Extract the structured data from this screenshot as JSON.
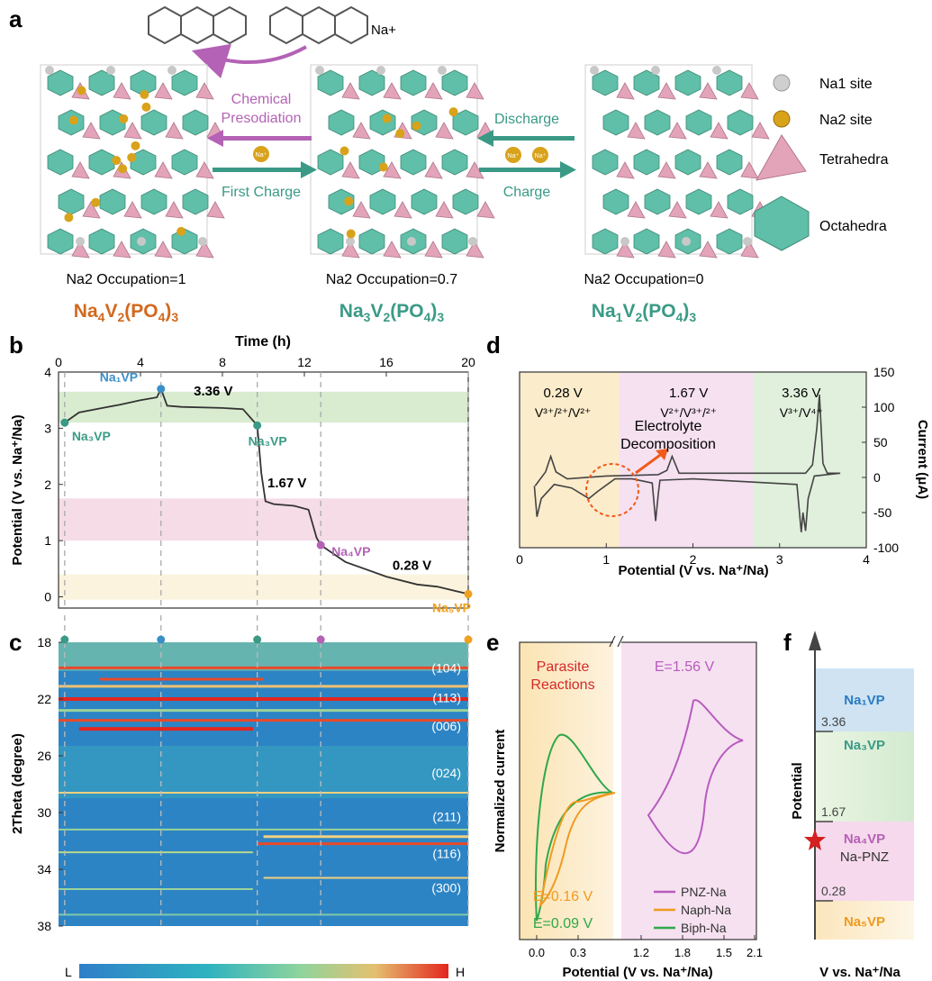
{
  "panel_letters": {
    "a": "a",
    "b": "b",
    "c": "c",
    "d": "d",
    "e": "e",
    "f": "f"
  },
  "panel_a": {
    "presodiation_label_1": "Chemical",
    "presodiation_label_2": "Presodiation",
    "first_charge_label": "First Charge",
    "discharge_label": "Discharge",
    "charge_label": "Charge",
    "na_plus": "Na+",
    "na_ion": "Na⁺",
    "occupation_left": "Na2 Occupation=1",
    "occupation_mid": "Na2 Occupation=0.7",
    "occupation_right": "Na2 Occupation=0",
    "legend": {
      "na1": "Na1 site",
      "na2": "Na2 site",
      "tetra": "Tetrahedra",
      "octa": "Octahedra"
    },
    "colors": {
      "octahedra": "#5fbfa8",
      "tetrahedra": "#e3a3b8",
      "na2": "#d9a21b",
      "na1": "#c8c8c8",
      "presodiation": "#b462b5",
      "charge": "#3a9a86"
    }
  },
  "chart_data": [
    {
      "panel": "b",
      "type": "line",
      "title": "",
      "xlabel": "Time (h)",
      "ylabel": "Potential (V vs. Na⁺/Na)",
      "xlim": [
        0,
        20
      ],
      "ylim": [
        -0.2,
        4.0
      ],
      "xticks": [
        "0",
        "4",
        "8",
        "12",
        "16",
        "20"
      ],
      "yticks": [
        "0",
        "1",
        "2",
        "3",
        "4"
      ],
      "x": [
        0.3,
        1,
        2,
        3,
        4,
        4.8,
        5.0,
        5.3,
        6,
        8,
        9,
        9.7,
        9.9,
        10.1,
        10.5,
        11.5,
        12.2,
        12.6,
        12.8,
        14,
        16,
        17.5,
        18.5,
        20
      ],
      "values": [
        3.1,
        3.28,
        3.35,
        3.42,
        3.5,
        3.55,
        3.7,
        3.4,
        3.38,
        3.36,
        3.34,
        3.05,
        2.2,
        1.7,
        1.65,
        1.62,
        1.55,
        1.05,
        0.92,
        0.62,
        0.36,
        0.22,
        0.18,
        0.05
      ],
      "bands": [
        {
          "label": "3.36 V",
          "range": [
            3.1,
            3.65
          ],
          "color": "#d9ecd0"
        },
        {
          "label": "1.67 V",
          "range": [
            1.0,
            1.75
          ],
          "color": "#f5dce6"
        },
        {
          "label": "0.28 V",
          "range": [
            -0.05,
            0.4
          ],
          "color": "#fbf3dd"
        }
      ],
      "points": [
        {
          "label": "Na₃VP",
          "x": 0.3,
          "y": 3.1,
          "color": "#3a9a86"
        },
        {
          "label": "Na₁VP",
          "x": 5.0,
          "y": 3.7,
          "color": "#3b8fc8"
        },
        {
          "label": "Na₃VP",
          "x": 9.7,
          "y": 3.05,
          "color": "#3a9a86"
        },
        {
          "label": "Na₄VP",
          "x": 12.8,
          "y": 0.92,
          "color": "#b462b5"
        },
        {
          "label": "Na₅VP",
          "x": 20,
          "y": 0.05,
          "color": "#f0a020"
        }
      ]
    },
    {
      "panel": "c",
      "type": "heatmap",
      "xlabel": "",
      "ylabel": "2Theta (degree)",
      "ylim": [
        18,
        38
      ],
      "yticks": [
        "18",
        "22",
        "26",
        "30",
        "34",
        "38"
      ],
      "peaks": [
        {
          "label": "(104)",
          "theta": 19.8
        },
        {
          "label": "(113)",
          "theta": 21.9
        },
        {
          "label": "(006)",
          "theta": 23.9
        },
        {
          "label": "(024)",
          "theta": 27.2
        },
        {
          "label": "(211)",
          "theta": 30.3
        },
        {
          "label": "(116)",
          "theta": 32.9
        },
        {
          "label": "(300)",
          "theta": 35.3
        }
      ],
      "colorbar": {
        "low": "L",
        "high": "H"
      }
    },
    {
      "panel": "d",
      "type": "line",
      "xlabel": "Potential (V vs. Na⁺/Na)",
      "ylabel": "Current (μA)",
      "xlim": [
        0,
        4
      ],
      "ylim": [
        -100,
        150
      ],
      "xticks": [
        "0",
        "1",
        "2",
        "3",
        "4"
      ],
      "yticks": [
        "150",
        "100",
        "50",
        "0",
        "-50",
        "-100"
      ],
      "regions": [
        {
          "label_v": "0.28 V",
          "label_couple": "V³⁺/²⁺/V²⁺",
          "range": [
            0,
            1.15
          ],
          "color": "#fbeccb"
        },
        {
          "label_v": "1.67 V",
          "label_couple": "V²⁺/V³⁺/²⁺",
          "range": [
            1.15,
            2.7
          ],
          "color": "#f6e1f0"
        },
        {
          "label_v": "3.36 V",
          "label_couple": "V³⁺/V⁴⁺",
          "range": [
            2.7,
            4.0
          ],
          "color": "#e0f0dc"
        }
      ],
      "annotation": "Electrolyte Decomposition"
    },
    {
      "panel": "e",
      "type": "line",
      "xlabel": "Potential (V vs. Na⁺/Na)",
      "ylabel": "Normalized current",
      "xticks": [
        "0.0",
        "0.3",
        "1.2",
        "1.8",
        "1.5",
        "2.1"
      ],
      "annotations": [
        "Parasite Reactions",
        "E=1.56 V",
        "E=0.16 V",
        "E=0.09 V"
      ],
      "series": [
        {
          "name": "PNZ-Na",
          "color": "#b85bbf"
        },
        {
          "name": "Naph-Na",
          "color": "#f09a20"
        },
        {
          "name": "Biph-Na",
          "color": "#2fa84a"
        }
      ]
    },
    {
      "panel": "f",
      "type": "bar",
      "xlabel": "V vs. Na⁺/Na",
      "ylabel": "Potential",
      "levels": [
        {
          "label": "Na₁VP",
          "color": "#cfe3f3"
        },
        {
          "label": "Na₃VP",
          "color": "#dff0d6"
        },
        {
          "label": "Na₄VP",
          "color": "#f6d9ec"
        },
        {
          "label": "Na₅VP",
          "color": "#fdf0cf"
        }
      ],
      "thresholds": [
        "3.36",
        "1.67",
        "0.28"
      ],
      "marker_label": "Na-PNZ"
    }
  ]
}
